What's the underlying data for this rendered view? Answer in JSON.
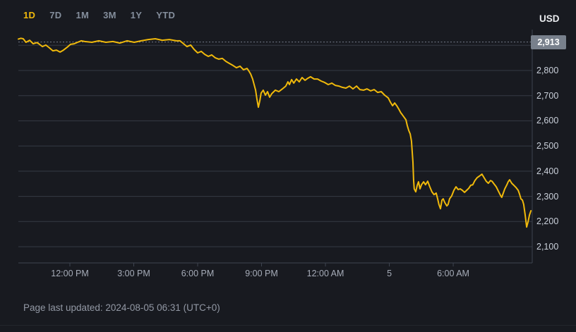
{
  "tabs": {
    "items": [
      {
        "label": "1D",
        "active": true
      },
      {
        "label": "7D",
        "active": false
      },
      {
        "label": "1M",
        "active": false
      },
      {
        "label": "3M",
        "active": false
      },
      {
        "label": "1Y",
        "active": false
      },
      {
        "label": "YTD",
        "active": false
      }
    ]
  },
  "currency_label": "USD",
  "footer": {
    "text": "Page last updated: 2024-08-05 06:31 (UTC+0)"
  },
  "colors": {
    "background": "#181A20",
    "line": "#F0B90B",
    "grid": "#353B44",
    "axis": "#3E4450",
    "dashed_price_line": "#757E8C",
    "y_label": "#CBD1DB",
    "x_label": "#A6ACB8",
    "tab_active": "#F0B90B",
    "tab_inactive": "#848E9C",
    "badge_bg": "#78808C",
    "badge_text": "#FFFFFF",
    "footer_text": "#9298A4"
  },
  "chart_data": {
    "type": "line",
    "title": "1D crypto price chart in USD",
    "legend": false,
    "grid": true,
    "x_unit": "hours relative to 12:00 PM tick",
    "x_range": [
      -2.42,
      21.71
    ],
    "y_range": [
      2036,
      2968
    ],
    "current_price": 2913,
    "current_price_label": "2,913",
    "x_ticks": [
      {
        "pos": 0,
        "label": "12:00 PM"
      },
      {
        "pos": 3,
        "label": "3:00 PM"
      },
      {
        "pos": 6,
        "label": "6:00 PM"
      },
      {
        "pos": 9,
        "label": "9:00 PM"
      },
      {
        "pos": 12,
        "label": "12:00 AM"
      },
      {
        "pos": 15,
        "label": "5"
      },
      {
        "pos": 18,
        "label": "6:00 AM"
      }
    ],
    "y_ticks": [
      {
        "value": 2800,
        "label": "2,800"
      },
      {
        "value": 2700,
        "label": "2,700"
      },
      {
        "value": 2600,
        "label": "2,600"
      },
      {
        "value": 2500,
        "label": "2,500"
      },
      {
        "value": 2400,
        "label": "2,400"
      },
      {
        "value": 2300,
        "label": "2,300"
      },
      {
        "value": 2200,
        "label": "2,200"
      },
      {
        "value": 2100,
        "label": "2,100"
      }
    ],
    "y_gridlines": [
      2900,
      2800,
      2700,
      2600,
      2500,
      2400,
      2300,
      2200,
      2100
    ],
    "series": [
      {
        "name": "price",
        "color": "#F0B90B",
        "points": [
          [
            -2.42,
            2925
          ],
          [
            -2.3,
            2928
          ],
          [
            -2.19,
            2926
          ],
          [
            -2.06,
            2912
          ],
          [
            -1.89,
            2920
          ],
          [
            -1.72,
            2906
          ],
          [
            -1.55,
            2911
          ],
          [
            -1.46,
            2906
          ],
          [
            -1.29,
            2895
          ],
          [
            -1.13,
            2901
          ],
          [
            -0.96,
            2890
          ],
          [
            -0.8,
            2878
          ],
          [
            -0.63,
            2881
          ],
          [
            -0.46,
            2873
          ],
          [
            -0.3,
            2881
          ],
          [
            -0.13,
            2892
          ],
          [
            0.03,
            2904
          ],
          [
            0.2,
            2906
          ],
          [
            0.36,
            2912
          ],
          [
            0.53,
            2918
          ],
          [
            0.7,
            2915
          ],
          [
            1.03,
            2912
          ],
          [
            1.36,
            2918
          ],
          [
            1.69,
            2912
          ],
          [
            2.02,
            2915
          ],
          [
            2.35,
            2909
          ],
          [
            2.68,
            2918
          ],
          [
            3.02,
            2912
          ],
          [
            3.35,
            2918
          ],
          [
            3.68,
            2923
          ],
          [
            4.01,
            2926
          ],
          [
            4.34,
            2920
          ],
          [
            4.67,
            2923
          ],
          [
            5.0,
            2918
          ],
          [
            5.17,
            2918
          ],
          [
            5.34,
            2906
          ],
          [
            5.5,
            2895
          ],
          [
            5.67,
            2901
          ],
          [
            5.83,
            2884
          ],
          [
            6.0,
            2870
          ],
          [
            6.17,
            2876
          ],
          [
            6.33,
            2864
          ],
          [
            6.5,
            2856
          ],
          [
            6.66,
            2862
          ],
          [
            6.83,
            2850
          ],
          [
            6.99,
            2845
          ],
          [
            7.16,
            2848
          ],
          [
            7.33,
            2836
          ],
          [
            7.49,
            2828
          ],
          [
            7.66,
            2820
          ],
          [
            7.82,
            2811
          ],
          [
            7.99,
            2817
          ],
          [
            8.15,
            2803
          ],
          [
            8.32,
            2808
          ],
          [
            8.39,
            2800
          ],
          [
            8.49,
            2786
          ],
          [
            8.58,
            2766
          ],
          [
            8.65,
            2744
          ],
          [
            8.72,
            2722
          ],
          [
            8.78,
            2688
          ],
          [
            8.85,
            2654
          ],
          [
            8.92,
            2680
          ],
          [
            8.98,
            2710
          ],
          [
            9.08,
            2722
          ],
          [
            9.18,
            2702
          ],
          [
            9.28,
            2716
          ],
          [
            9.38,
            2694
          ],
          [
            9.48,
            2708
          ],
          [
            9.65,
            2722
          ],
          [
            9.81,
            2716
          ],
          [
            9.98,
            2727
          ],
          [
            10.14,
            2738
          ],
          [
            10.24,
            2755
          ],
          [
            10.31,
            2744
          ],
          [
            10.41,
            2764
          ],
          [
            10.51,
            2750
          ],
          [
            10.64,
            2766
          ],
          [
            10.77,
            2755
          ],
          [
            10.9,
            2772
          ],
          [
            11.04,
            2761
          ],
          [
            11.17,
            2769
          ],
          [
            11.3,
            2775
          ],
          [
            11.47,
            2766
          ],
          [
            11.63,
            2766
          ],
          [
            11.8,
            2758
          ],
          [
            11.97,
            2752
          ],
          [
            12.13,
            2744
          ],
          [
            12.3,
            2750
          ],
          [
            12.46,
            2741
          ],
          [
            12.63,
            2738
          ],
          [
            12.79,
            2733
          ],
          [
            12.96,
            2730
          ],
          [
            13.13,
            2738
          ],
          [
            13.29,
            2727
          ],
          [
            13.46,
            2738
          ],
          [
            13.62,
            2724
          ],
          [
            13.79,
            2722
          ],
          [
            13.95,
            2727
          ],
          [
            14.12,
            2719
          ],
          [
            14.29,
            2724
          ],
          [
            14.45,
            2713
          ],
          [
            14.62,
            2716
          ],
          [
            14.78,
            2702
          ],
          [
            14.95,
            2691
          ],
          [
            15.05,
            2674
          ],
          [
            15.15,
            2660
          ],
          [
            15.25,
            2671
          ],
          [
            15.35,
            2660
          ],
          [
            15.45,
            2646
          ],
          [
            15.54,
            2632
          ],
          [
            15.61,
            2624
          ],
          [
            15.71,
            2612
          ],
          [
            15.78,
            2604
          ],
          [
            15.84,
            2582
          ],
          [
            15.91,
            2562
          ],
          [
            15.98,
            2548
          ],
          [
            16.04,
            2520
          ],
          [
            16.11,
            2436
          ],
          [
            16.14,
            2366
          ],
          [
            16.17,
            2330
          ],
          [
            16.24,
            2318
          ],
          [
            16.31,
            2344
          ],
          [
            16.37,
            2358
          ],
          [
            16.44,
            2330
          ],
          [
            16.51,
            2346
          ],
          [
            16.61,
            2358
          ],
          [
            16.7,
            2346
          ],
          [
            16.8,
            2360
          ],
          [
            16.9,
            2338
          ],
          [
            17.0,
            2318
          ],
          [
            17.1,
            2307
          ],
          [
            17.2,
            2313
          ],
          [
            17.27,
            2290
          ],
          [
            17.33,
            2268
          ],
          [
            17.4,
            2251
          ],
          [
            17.47,
            2285
          ],
          [
            17.53,
            2290
          ],
          [
            17.6,
            2276
          ],
          [
            17.7,
            2262
          ],
          [
            17.76,
            2268
          ],
          [
            17.83,
            2290
          ],
          [
            17.93,
            2302
          ],
          [
            18.03,
            2324
          ],
          [
            18.13,
            2338
          ],
          [
            18.23,
            2327
          ],
          [
            18.33,
            2330
          ],
          [
            18.43,
            2324
          ],
          [
            18.53,
            2316
          ],
          [
            18.63,
            2324
          ],
          [
            18.73,
            2332
          ],
          [
            18.82,
            2344
          ],
          [
            18.92,
            2346
          ],
          [
            19.02,
            2363
          ],
          [
            19.12,
            2374
          ],
          [
            19.22,
            2380
          ],
          [
            19.35,
            2388
          ],
          [
            19.45,
            2374
          ],
          [
            19.55,
            2360
          ],
          [
            19.65,
            2352
          ],
          [
            19.75,
            2363
          ],
          [
            19.82,
            2360
          ],
          [
            19.92,
            2349
          ],
          [
            20.02,
            2338
          ],
          [
            20.12,
            2321
          ],
          [
            20.22,
            2304
          ],
          [
            20.28,
            2296
          ],
          [
            20.35,
            2313
          ],
          [
            20.42,
            2330
          ],
          [
            20.52,
            2346
          ],
          [
            20.58,
            2358
          ],
          [
            20.65,
            2366
          ],
          [
            20.75,
            2352
          ],
          [
            20.85,
            2344
          ],
          [
            20.95,
            2335
          ],
          [
            21.05,
            2324
          ],
          [
            21.11,
            2310
          ],
          [
            21.18,
            2290
          ],
          [
            21.25,
            2285
          ],
          [
            21.31,
            2268
          ],
          [
            21.38,
            2226
          ],
          [
            21.45,
            2178
          ],
          [
            21.51,
            2198
          ],
          [
            21.58,
            2226
          ],
          [
            21.65,
            2243
          ]
        ]
      }
    ]
  }
}
